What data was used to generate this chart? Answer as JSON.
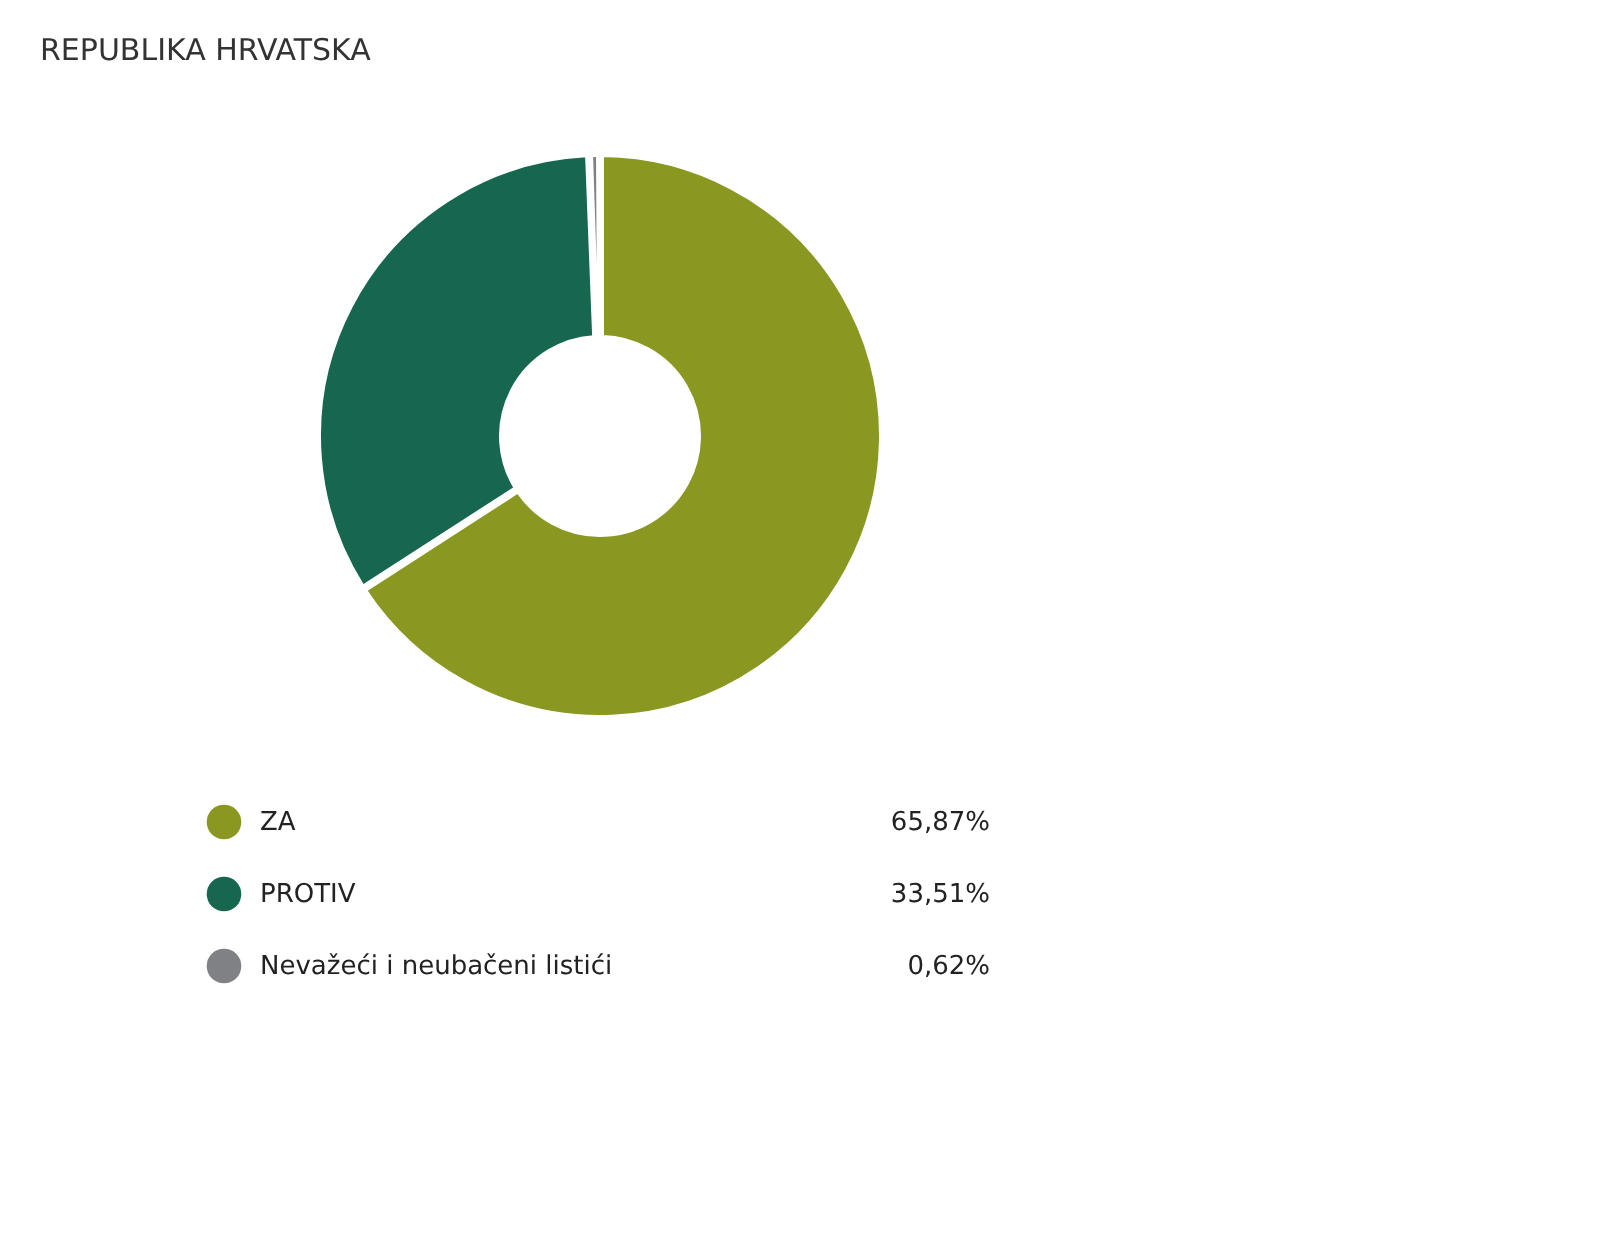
{
  "chart_data": {
    "type": "donut",
    "title": "REPUBLIKA HRVATSKA",
    "categories": [
      "ZA",
      "PROTIV",
      "Nevažeći i neubačeni listići"
    ],
    "values": [
      65.87,
      33.51,
      0.62
    ],
    "colors": [
      "#8a9822",
      "#176750",
      "#7f8185"
    ],
    "value_labels": [
      "65,87%",
      "33,51%",
      "0,62%"
    ],
    "legend": "bottom"
  }
}
